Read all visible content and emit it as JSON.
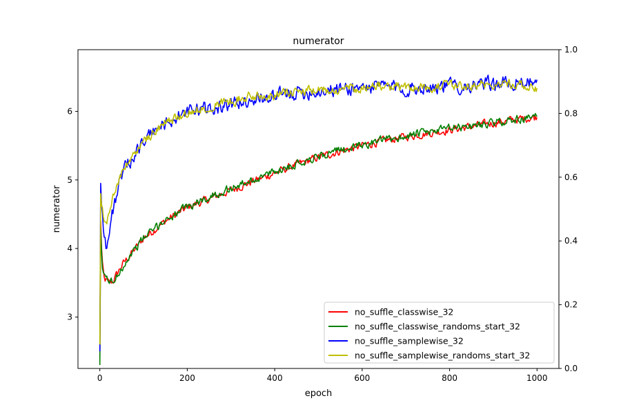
{
  "chart_data": {
    "type": "line",
    "title": "numerator",
    "xlabel": "epoch",
    "ylabel": "numerator",
    "xlim": [
      -50,
      1050
    ],
    "ylim": [
      2.25,
      6.9
    ],
    "y2lim": [
      0.0,
      1.0
    ],
    "x_ticks": [
      0,
      200,
      400,
      600,
      800,
      1000
    ],
    "y_ticks": [
      3,
      4,
      5,
      6
    ],
    "y2_ticks": [
      0.0,
      0.2,
      0.4,
      0.6,
      0.8,
      1.0
    ],
    "x_tick_labels": [
      "0",
      "200",
      "400",
      "600",
      "800",
      "1000"
    ],
    "y_tick_labels": [
      "3",
      "4",
      "5",
      "6"
    ],
    "y2_tick_labels": [
      "0.0",
      "0.2",
      "0.4",
      "0.6",
      "0.8",
      "1.0"
    ],
    "grid": false,
    "legend_position": "lower-right",
    "series": [
      {
        "name": "no_suffle_classwise_32",
        "color": "#ff0000",
        "noise": 0.05,
        "points": [
          [
            0,
            2.4
          ],
          [
            2,
            4.4
          ],
          [
            5,
            3.8
          ],
          [
            10,
            3.55
          ],
          [
            20,
            3.5
          ],
          [
            30,
            3.52
          ],
          [
            50,
            3.75
          ],
          [
            75,
            3.95
          ],
          [
            100,
            4.15
          ],
          [
            150,
            4.4
          ],
          [
            200,
            4.6
          ],
          [
            250,
            4.72
          ],
          [
            300,
            4.85
          ],
          [
            350,
            4.98
          ],
          [
            400,
            5.1
          ],
          [
            450,
            5.22
          ],
          [
            500,
            5.33
          ],
          [
            550,
            5.42
          ],
          [
            600,
            5.5
          ],
          [
            650,
            5.57
          ],
          [
            700,
            5.63
          ],
          [
            750,
            5.68
          ],
          [
            800,
            5.73
          ],
          [
            850,
            5.78
          ],
          [
            900,
            5.83
          ],
          [
            950,
            5.88
          ],
          [
            1000,
            5.92
          ]
        ]
      },
      {
        "name": "no_suffle_classwise_randoms_start_32",
        "color": "#008000",
        "noise": 0.05,
        "points": [
          [
            0,
            2.3
          ],
          [
            2,
            4.3
          ],
          [
            5,
            3.75
          ],
          [
            10,
            3.6
          ],
          [
            20,
            3.55
          ],
          [
            30,
            3.5
          ],
          [
            50,
            3.72
          ],
          [
            75,
            3.95
          ],
          [
            100,
            4.15
          ],
          [
            150,
            4.42
          ],
          [
            200,
            4.6
          ],
          [
            250,
            4.75
          ],
          [
            300,
            4.88
          ],
          [
            350,
            5.0
          ],
          [
            400,
            5.12
          ],
          [
            450,
            5.24
          ],
          [
            500,
            5.35
          ],
          [
            550,
            5.43
          ],
          [
            600,
            5.51
          ],
          [
            650,
            5.58
          ],
          [
            700,
            5.64
          ],
          [
            750,
            5.7
          ],
          [
            800,
            5.75
          ],
          [
            850,
            5.79
          ],
          [
            900,
            5.83
          ],
          [
            950,
            5.88
          ],
          [
            1000,
            5.92
          ]
        ]
      },
      {
        "name": "no_suffle_samplewise_32",
        "color": "#0000ff",
        "noise": 0.09,
        "points": [
          [
            0,
            2.5
          ],
          [
            2,
            4.95
          ],
          [
            5,
            4.6
          ],
          [
            10,
            4.2
          ],
          [
            15,
            4.0
          ],
          [
            20,
            4.15
          ],
          [
            30,
            4.55
          ],
          [
            40,
            4.85
          ],
          [
            50,
            5.05
          ],
          [
            75,
            5.35
          ],
          [
            100,
            5.55
          ],
          [
            125,
            5.72
          ],
          [
            150,
            5.83
          ],
          [
            200,
            5.98
          ],
          [
            250,
            6.05
          ],
          [
            300,
            6.1
          ],
          [
            350,
            6.18
          ],
          [
            400,
            6.22
          ],
          [
            450,
            6.27
          ],
          [
            500,
            6.3
          ],
          [
            550,
            6.33
          ],
          [
            600,
            6.35
          ],
          [
            650,
            6.37
          ],
          [
            700,
            6.33
          ],
          [
            750,
            6.36
          ],
          [
            800,
            6.38
          ],
          [
            850,
            6.37
          ],
          [
            900,
            6.4
          ],
          [
            950,
            6.42
          ],
          [
            975,
            6.45
          ],
          [
            1000,
            6.35
          ]
        ]
      },
      {
        "name": "no_suffle_samplewise_randoms_start_32",
        "color": "#bfbf00",
        "noise": 0.06,
        "points": [
          [
            0,
            2.6
          ],
          [
            2,
            4.8
          ],
          [
            5,
            4.6
          ],
          [
            10,
            4.4
          ],
          [
            15,
            4.35
          ],
          [
            20,
            4.5
          ],
          [
            30,
            4.75
          ],
          [
            40,
            4.95
          ],
          [
            50,
            5.1
          ],
          [
            75,
            5.35
          ],
          [
            100,
            5.55
          ],
          [
            125,
            5.72
          ],
          [
            150,
            5.83
          ],
          [
            200,
            5.98
          ],
          [
            250,
            6.08
          ],
          [
            300,
            6.15
          ],
          [
            350,
            6.22
          ],
          [
            400,
            6.25
          ],
          [
            450,
            6.28
          ],
          [
            500,
            6.3
          ],
          [
            550,
            6.33
          ],
          [
            600,
            6.35
          ],
          [
            650,
            6.37
          ],
          [
            700,
            6.35
          ],
          [
            750,
            6.36
          ],
          [
            800,
            6.37
          ],
          [
            850,
            6.38
          ],
          [
            900,
            6.4
          ],
          [
            950,
            6.42
          ],
          [
            1000,
            6.3
          ]
        ]
      }
    ]
  }
}
